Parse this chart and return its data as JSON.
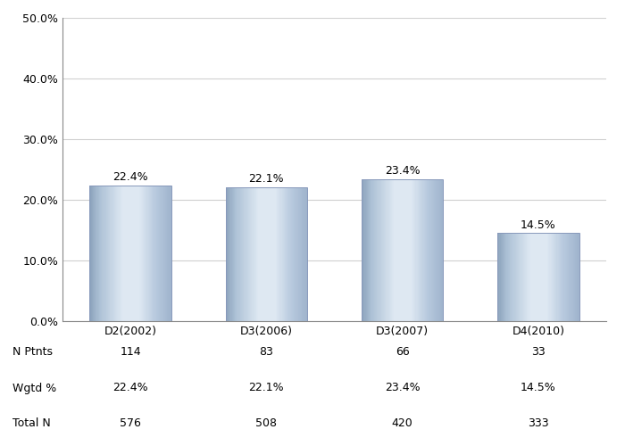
{
  "categories": [
    "D2(2002)",
    "D3(2006)",
    "D3(2007)",
    "D4(2010)"
  ],
  "values": [
    22.4,
    22.1,
    23.4,
    14.5
  ],
  "labels": [
    "22.4%",
    "22.1%",
    "23.4%",
    "14.5%"
  ],
  "ylim": [
    0,
    50
  ],
  "yticks": [
    0,
    10,
    20,
    30,
    40,
    50
  ],
  "ytick_labels": [
    "0.0%",
    "10.0%",
    "20.0%",
    "30.0%",
    "40.0%",
    "50.0%"
  ],
  "table_rows": [
    "N Ptnts",
    "Wgtd %",
    "Total N"
  ],
  "table_data": [
    [
      "114",
      "83",
      "66",
      "33"
    ],
    [
      "22.4%",
      "22.1%",
      "23.4%",
      "14.5%"
    ],
    [
      "576",
      "508",
      "420",
      "333"
    ]
  ],
  "background_color": "#ffffff",
  "grid_color": "#d0d0d0",
  "bar_width": 0.6,
  "label_fontsize": 9,
  "tick_fontsize": 9,
  "table_fontsize": 9
}
